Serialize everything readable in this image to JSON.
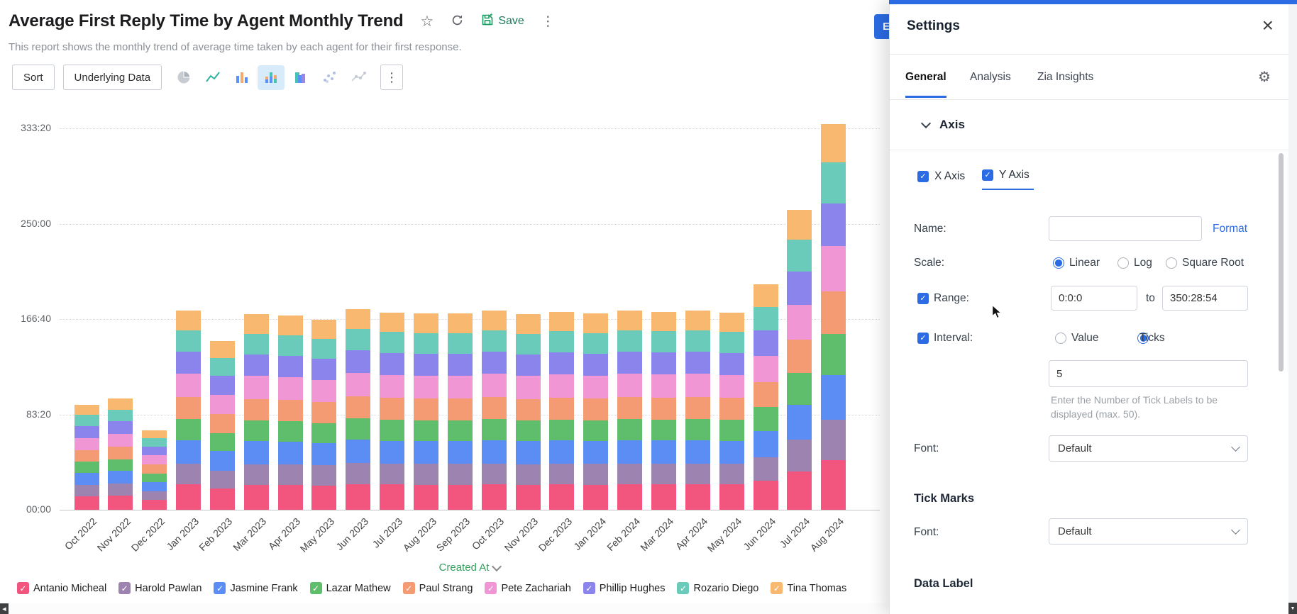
{
  "colors": {
    "accent_blue": "#2B6BE4",
    "save_green": "#159A62",
    "created_at_green": "#35A05E",
    "selected_chart_bg": "#D7EBFA"
  },
  "icons": {
    "star": "☆",
    "more": "⋮",
    "close": "×",
    "gear": "⚙",
    "check": "✓",
    "down_arrow": "▼",
    "left_arrow": "◀"
  },
  "header": {
    "title": "Average First Reply Time by Agent Monthly Trend",
    "subtitle": "This report shows the monthly trend of average time taken by each agent for their first response.",
    "save_label": "Save",
    "edit_label": "E"
  },
  "toolbar": {
    "sort_label": "Sort",
    "underlying_data_label": "Underlying Data",
    "chart_types": [
      "pie",
      "line",
      "bar",
      "stacked-bar",
      "overlapped-bar",
      "scatter",
      "bubble"
    ],
    "selected_chart_type": "stacked-bar"
  },
  "chart_data": {
    "type": "bar",
    "stacked": true,
    "title": "Average First Reply Time by Agent Monthly Trend",
    "x_field": "Created At",
    "unit": "minutes",
    "ylim": [
      0,
      20000
    ],
    "y_tick_values": [
      0,
      5000,
      10000,
      15000,
      20000
    ],
    "y_tick_labels": [
      "00:00",
      "83:20",
      "166:40",
      "250:00",
      "333:20"
    ],
    "legend_position": "bottom",
    "grid": "dotted-horizontal",
    "categories": [
      "Oct 2022",
      "Nov 2022",
      "Dec 2022",
      "Jan 2023",
      "Feb 2023",
      "Mar 2023",
      "Apr 2023",
      "May 2023",
      "Jun 2023",
      "Jul 2023",
      "Aug 2023",
      "Sep 2023",
      "Oct 2023",
      "Nov 2023",
      "Dec 2023",
      "Jan 2024",
      "Feb 2024",
      "Mar 2024",
      "Apr 2024",
      "May 2024",
      "Jun 2024",
      "Jul 2024",
      "Aug 2024"
    ],
    "series": [
      {
        "name": "Antanio Micheal",
        "color": "#F2557D",
        "values": [
          705,
          745,
          534,
          1333,
          1128,
          1311,
          1300,
          1273,
          1344,
          1323,
          1316,
          1316,
          1333,
          1311,
          1328,
          1316,
          1333,
          1328,
          1333,
          1323,
          1512,
          2011,
          2584
        ]
      },
      {
        "name": "Harold Pawlan",
        "color": "#9D84B0",
        "values": [
          583,
          615,
          441,
          1101,
          932,
          1083,
          1074,
          1051,
          1110,
          1093,
          1087,
          1087,
          1101,
          1083,
          1097,
          1087,
          1101,
          1097,
          1101,
          1093,
          1249,
          1661,
          2134
        ]
      },
      {
        "name": "Jasmine Frank",
        "color": "#5C8DF5",
        "values": [
          644,
          680,
          488,
          1217,
          1030,
          1197,
          1187,
          1162,
          1227,
          1208,
          1202,
          1202,
          1217,
          1197,
          1212,
          1202,
          1217,
          1212,
          1217,
          1208,
          1380,
          1836,
          2359
        ]
      },
      {
        "name": "Lazar Mathew",
        "color": "#5FBE6B",
        "values": [
          583,
          615,
          441,
          1101,
          932,
          1083,
          1074,
          1051,
          1110,
          1093,
          1087,
          1087,
          1101,
          1083,
          1097,
          1087,
          1101,
          1097,
          1101,
          1093,
          1249,
          1661,
          2134
        ]
      },
      {
        "name": "Paul Strang",
        "color": "#F59B74",
        "values": [
          613,
          648,
          464,
          1159,
          981,
          1140,
          1130,
          1107,
          1169,
          1150,
          1144,
          1144,
          1159,
          1140,
          1154,
          1144,
          1159,
          1154,
          1159,
          1150,
          1314,
          1749,
          2247
        ]
      },
      {
        "name": "Pete Zachariah",
        "color": "#F096D4",
        "values": [
          644,
          680,
          488,
          1217,
          1030,
          1197,
          1187,
          1162,
          1227,
          1208,
          1202,
          1202,
          1217,
          1197,
          1212,
          1202,
          1217,
          1212,
          1217,
          1208,
          1380,
          1836,
          2359
        ]
      },
      {
        "name": "Phillip Hughes",
        "color": "#8A84EC",
        "values": [
          613,
          648,
          464,
          1159,
          981,
          1140,
          1130,
          1107,
          1169,
          1150,
          1144,
          1144,
          1159,
          1140,
          1154,
          1144,
          1159,
          1154,
          1159,
          1150,
          1314,
          1749,
          2247
        ]
      },
      {
        "name": "Rozario Diego",
        "color": "#6BCBBB",
        "values": [
          583,
          615,
          441,
          1101,
          932,
          1083,
          1074,
          1051,
          1110,
          1093,
          1087,
          1087,
          1101,
          1083,
          1097,
          1087,
          1101,
          1097,
          1101,
          1093,
          1249,
          1661,
          2134
        ]
      },
      {
        "name": "Tina Thomas",
        "color": "#F9B86F",
        "values": [
          552,
          583,
          418,
          1043,
          883,
          1026,
          1017,
          996,
          1052,
          1035,
          1030,
          1030,
          1043,
          1026,
          1039,
          1030,
          1043,
          1039,
          1043,
          1035,
          1183,
          1574,
          2022
        ]
      }
    ]
  },
  "settings": {
    "title": "Settings",
    "tabs": [
      "General",
      "Analysis",
      "Zia Insights"
    ],
    "active_tab": "General",
    "axis": {
      "section_title": "Axis",
      "x_axis": "X Axis",
      "y_axis": "Y Axis",
      "name_label": "Name:",
      "name_value": "",
      "format_label": "Format",
      "scale_label": "Scale:",
      "scale_options": [
        "Linear",
        "Log",
        "Square Root"
      ],
      "scale_selected": "Linear",
      "range_label": "Range:",
      "range_from": "0:0:0",
      "to_label": "to",
      "range_to": "350:28:54",
      "interval_label": "Interval:",
      "interval_options": [
        "Value",
        "Ticks"
      ],
      "interval_selected": "Ticks",
      "ticks_count": "5",
      "ticks_help": "Enter the Number of Tick Labels to be displayed (max. 50).",
      "font_label": "Font:",
      "font_value": "Default"
    },
    "tick_marks": {
      "section_title": "Tick Marks",
      "font_label": "Font:",
      "font_value": "Default"
    },
    "data_label": {
      "section_title": "Data Label"
    }
  }
}
